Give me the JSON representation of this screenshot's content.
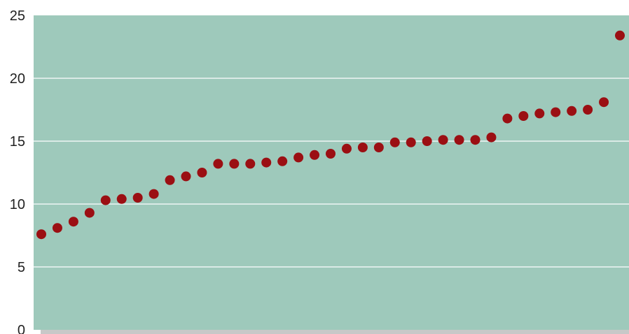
{
  "chart_data": {
    "type": "scatter",
    "title": "",
    "xlabel": "",
    "ylabel": "",
    "ylim": [
      0,
      25
    ],
    "yticks": [
      "0",
      "5",
      "10",
      "15",
      "20",
      "25"
    ],
    "grid": true,
    "legend": "none",
    "colors": {
      "plot_background": "#9ec9bb",
      "marker": "#9b0f13",
      "gridline": "#ffffff",
      "shadow": "#c8c8c8"
    },
    "x": [
      1,
      2,
      3,
      4,
      5,
      6,
      7,
      8,
      9,
      10,
      11,
      12,
      13,
      14,
      15,
      16,
      17,
      18,
      19,
      20,
      21,
      22,
      23,
      24,
      25,
      26,
      27,
      28,
      29,
      30,
      31,
      32,
      33,
      34,
      35,
      36,
      37
    ],
    "values": [
      7.6,
      8.1,
      8.6,
      9.3,
      10.3,
      10.4,
      10.5,
      10.8,
      11.9,
      12.2,
      12.5,
      13.2,
      13.2,
      13.2,
      13.3,
      13.4,
      13.7,
      13.9,
      14.0,
      14.4,
      14.5,
      14.5,
      14.9,
      14.9,
      15.0,
      15.1,
      15.1,
      15.1,
      15.3,
      16.8,
      17.0,
      17.2,
      17.3,
      17.4,
      17.5,
      18.1,
      23.4
    ]
  }
}
